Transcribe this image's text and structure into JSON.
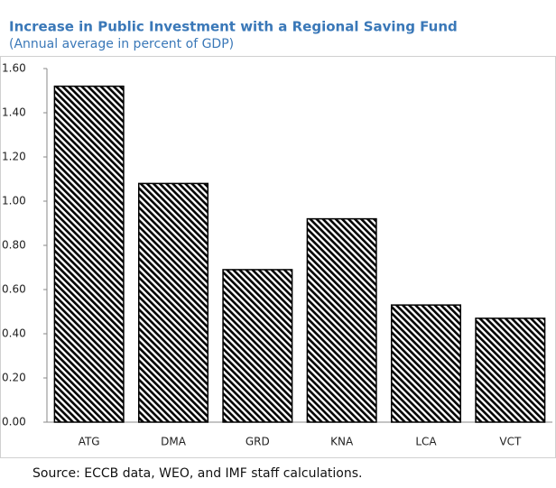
{
  "chart_data": {
    "type": "bar",
    "title": "Increase in Public Investment with a Regional Saving Fund",
    "subtitle": "(Annual average in percent of GDP)",
    "categories": [
      "ATG",
      "DMA",
      "GRD",
      "KNA",
      "LCA",
      "VCT"
    ],
    "values": [
      1.52,
      1.08,
      0.69,
      0.92,
      0.53,
      0.47
    ],
    "color": "#000000",
    "ylim": [
      0,
      1.6
    ],
    "yticks": [
      {
        "value": 0,
        "label": "0.00"
      },
      {
        "value": 0.2,
        "label": "0.20"
      },
      {
        "value": 0.4,
        "label": "0.40"
      },
      {
        "value": 0.6,
        "label": "0.60"
      },
      {
        "value": 0.8,
        "label": "0.80"
      },
      {
        "value": 1.0,
        "label": "1.00"
      },
      {
        "value": 1.2,
        "label": "1.20"
      },
      {
        "value": 1.4,
        "label": "1.40"
      },
      {
        "value": 1.6,
        "label": "1.60"
      }
    ],
    "source": "Source: ECCB data, WEO, and IMF staff calculations."
  }
}
